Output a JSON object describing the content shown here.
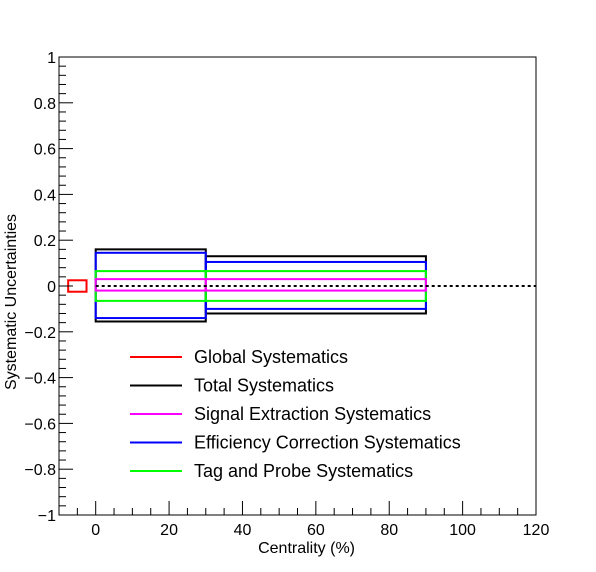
{
  "chart_data": {
    "type": "box",
    "title": "",
    "xlabel": "Centrality (%)",
    "ylabel": "Systematic Uncertainties",
    "xlim": [
      -10,
      120
    ],
    "ylim": [
      -1,
      1
    ],
    "x_ticks": [
      0,
      20,
      40,
      60,
      80,
      100,
      120
    ],
    "y_ticks": [
      -1,
      -0.8,
      -0.6,
      -0.4,
      -0.2,
      0,
      0.2,
      0.4,
      0.6,
      0.8,
      1
    ],
    "x_tick_labels": [
      "0",
      "20",
      "40",
      "60",
      "80",
      "100",
      "120"
    ],
    "y_tick_labels": [
      "−1",
      "−0.8",
      "−0.6",
      "−0.4",
      "−0.2",
      "0",
      "0.2",
      "0.4",
      "0.6",
      "0.8",
      "1"
    ],
    "reference_line": {
      "y": 0,
      "style": "dotted",
      "color": "#000000"
    },
    "grid": false,
    "legend_position": "bottom-center",
    "series": [
      {
        "name": "Global Systematics",
        "color": "#ff0000",
        "boxes": [
          {
            "x0": -7.5,
            "x1": -2.5,
            "y0": -0.025,
            "y1": 0.025
          }
        ]
      },
      {
        "name": "Total Systematics",
        "color": "#000000",
        "boxes": [
          {
            "x0": 0,
            "x1": 30,
            "y0": -0.155,
            "y1": 0.16
          },
          {
            "x0": 30,
            "x1": 90,
            "y0": -0.12,
            "y1": 0.13
          }
        ]
      },
      {
        "name": "Signal Extraction Systematics",
        "color": "#ff00ff",
        "boxes": [
          {
            "x0": 0,
            "x1": 30,
            "y0": -0.02,
            "y1": 0.03
          },
          {
            "x0": 30,
            "x1": 90,
            "y0": -0.02,
            "y1": 0.03
          }
        ]
      },
      {
        "name": "Efficiency Correction Systematics",
        "color": "#0000ff",
        "boxes": [
          {
            "x0": 0,
            "x1": 30,
            "y0": -0.14,
            "y1": 0.145
          },
          {
            "x0": 30,
            "x1": 90,
            "y0": -0.1,
            "y1": 0.105
          }
        ]
      },
      {
        "name": "Tag and Probe Systematics",
        "color": "#00ff00",
        "boxes": [
          {
            "x0": 0,
            "x1": 30,
            "y0": -0.065,
            "y1": 0.065
          },
          {
            "x0": 30,
            "x1": 90,
            "y0": -0.065,
            "y1": 0.065
          }
        ]
      }
    ]
  }
}
